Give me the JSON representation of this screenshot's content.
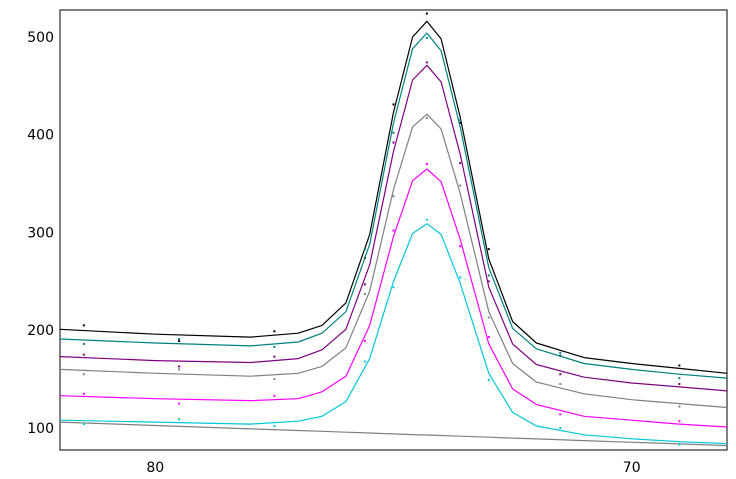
{
  "chart_data": {
    "type": "line",
    "x": [
      82,
      80,
      78,
      77,
      76.5,
      76,
      75.5,
      75,
      74.6,
      74.3,
      74,
      73.6,
      73,
      72.5,
      72,
      71,
      70,
      69,
      68
    ],
    "series": [
      {
        "color": "#808080",
        "values": [
          107,
          103.6,
          100.1,
          98.4,
          97.6,
          96.7,
          95.9,
          95,
          94.3,
          93.8,
          93.3,
          92.6,
          91.6,
          90.7,
          89.9,
          88.1,
          86.4,
          84.7,
          83
        ]
      },
      {
        "color": "#000000",
        "values": [
          202,
          197,
          194,
          198,
          206,
          229,
          299,
          424,
          501,
          517,
          499,
          419,
          274,
          210,
          188,
          173,
          167,
          162,
          157
        ],
        "points": {
          "x": [
            81.5,
            79.5,
            77.5,
            75.6,
            75.0,
            74.3,
            73.6,
            73.0,
            71.5,
            69.0
          ],
          "values": [
            206,
            190,
            200,
            275,
            432,
            525,
            413,
            284,
            175,
            165
          ]
        }
      },
      {
        "color": "#008080",
        "values": [
          192,
          188,
          185,
          189,
          198,
          220,
          289,
          413,
          489,
          505,
          487,
          409,
          265,
          203,
          182,
          167,
          161,
          156,
          152
        ],
        "points": {
          "x": [
            81.5,
            79.5,
            77.5,
            75.6,
            75.0,
            74.3,
            73.6,
            73.0,
            71.5,
            69.0
          ],
          "values": [
            187,
            192,
            184,
            284,
            403,
            500,
            416,
            257,
            178,
            152
          ]
        }
      },
      {
        "color": "#800080",
        "values": [
          174,
          170,
          168,
          172,
          181,
          202,
          268,
          384,
          457,
          472,
          455,
          381,
          245,
          187,
          166,
          153,
          147,
          143,
          139
        ],
        "points": {
          "x": [
            81.5,
            79.5,
            77.5,
            75.6,
            75.0,
            74.3,
            73.6,
            73.0,
            71.5,
            69.0
          ],
          "values": [
            176,
            164,
            174,
            248,
            393,
            475,
            372,
            251,
            156,
            146
          ]
        }
      },
      {
        "color": "#808080",
        "values": [
          161,
          157,
          154,
          157,
          164,
          183,
          241,
          345,
          409,
          422,
          407,
          341,
          220,
          167,
          148,
          136,
          130,
          126,
          122
        ],
        "points": {
          "x": [
            81.5,
            79.5,
            77.5,
            75.6,
            75.0,
            74.3,
            73.6,
            73.0,
            71.5,
            69.0
          ],
          "values": [
            156,
            161,
            151,
            238,
            338,
            418,
            349,
            214,
            146,
            123
          ]
        }
      },
      {
        "color": "#ff00ff",
        "values": [
          134,
          131,
          129,
          131,
          138,
          154,
          206,
          297,
          354,
          366,
          353,
          294,
          187,
          141,
          125,
          113,
          109,
          105,
          102
        ],
        "points": {
          "x": [
            81.5,
            79.5,
            77.5,
            75.6,
            75.0,
            74.3,
            73.6,
            73.0,
            71.5,
            69.0
          ],
          "values": [
            136,
            126,
            134,
            190,
            303,
            371,
            287,
            194,
            115,
            108
          ]
        }
      },
      {
        "color": "#00c8d8",
        "values": [
          109,
          107,
          105,
          108,
          113,
          128,
          172,
          251,
          300,
          310,
          299,
          249,
          157,
          117,
          103,
          94,
          90,
          87,
          85
        ],
        "points": {
          "x": [
            81.5,
            79.5,
            77.5,
            75.6,
            75.0,
            74.3,
            73.6,
            73.0,
            71.5,
            69.0
          ],
          "values": [
            105,
            110,
            103,
            169,
            245,
            314,
            255,
            150,
            101,
            84
          ]
        }
      }
    ],
    "xlim": [
      82,
      68
    ],
    "xticks": [
      80,
      70
    ],
    "ylim": [
      78.5,
      528.6
    ],
    "yticks": [
      100,
      200,
      300,
      400,
      500
    ]
  }
}
